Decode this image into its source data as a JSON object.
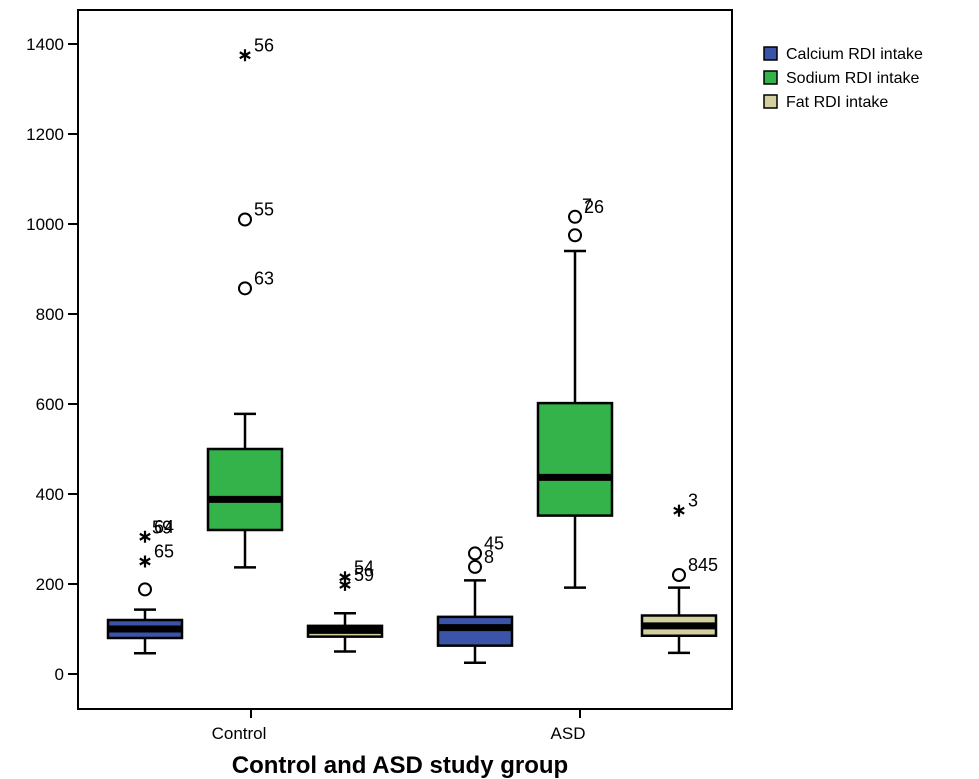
{
  "chart_data": {
    "type": "boxplot",
    "xlabel": "Control and ASD study group",
    "ylabel": "",
    "ylim": [
      -80,
      1460
    ],
    "yticks": [
      0,
      200,
      400,
      600,
      800,
      1000,
      1200,
      1400
    ],
    "categories": [
      "Control",
      "ASD"
    ],
    "grid": false,
    "legend_position": "right",
    "series": [
      {
        "name": "Calcium RDI intake",
        "color": "#3a55a8",
        "boxes": [
          {
            "group": "Control",
            "min": 46,
            "q1": 80,
            "median": 100,
            "q3": 120,
            "max": 143,
            "outliers": [
              {
                "value": 188,
                "marker": "circle",
                "label": ""
              },
              {
                "value": 250,
                "marker": "star",
                "label": "65"
              },
              {
                "value": 305,
                "marker": "star",
                "label": "64"
              }
            ],
            "extra_labels": [
              {
                "text": "59",
                "at": 335
              }
            ]
          },
          {
            "group": "ASD",
            "min": 25,
            "q1": 63,
            "median": 103,
            "q3": 127,
            "max": 208,
            "outliers": [
              {
                "value": 238,
                "marker": "circle",
                "label": "8"
              },
              {
                "value": 268,
                "marker": "circle",
                "label": "45"
              }
            ],
            "extra_labels": []
          }
        ]
      },
      {
        "name": "Sodium RDI intake",
        "color": "#33b34a",
        "boxes": [
          {
            "group": "Control",
            "min": 237,
            "q1": 320,
            "median": 388,
            "q3": 500,
            "max": 578,
            "outliers": [
              {
                "value": 857,
                "marker": "circle",
                "label": "63"
              },
              {
                "value": 1010,
                "marker": "circle",
                "label": "55"
              },
              {
                "value": 1375,
                "marker": "star",
                "label": "56"
              }
            ],
            "extra_labels": []
          },
          {
            "group": "ASD",
            "min": 192,
            "q1": 352,
            "median": 437,
            "q3": 602,
            "max": 940,
            "outliers": [
              {
                "value": 975,
                "marker": "circle",
                "label": ""
              },
              {
                "value": 1016,
                "marker": "circle",
                "label": "26"
              }
            ],
            "extra_labels": [
              {
                "text": "7",
                "at": 1050
              }
            ]
          }
        ]
      },
      {
        "name": "Fat RDI intake",
        "color": "#d4cfa1",
        "boxes": [
          {
            "group": "Control",
            "min": 50,
            "q1": 83,
            "median": 97,
            "q3": 107,
            "max": 135,
            "outliers": [
              {
                "value": 198,
                "marker": "star",
                "label": "59"
              },
              {
                "value": 215,
                "marker": "star",
                "label": "54"
              }
            ],
            "extra_labels": []
          },
          {
            "group": "ASD",
            "min": 47,
            "q1": 85,
            "median": 107,
            "q3": 130,
            "max": 192,
            "outliers": [
              {
                "value": 220,
                "marker": "circle",
                "label": "845"
              },
              {
                "value": 363,
                "marker": "star",
                "label": "3"
              }
            ],
            "extra_labels": []
          }
        ]
      }
    ]
  }
}
